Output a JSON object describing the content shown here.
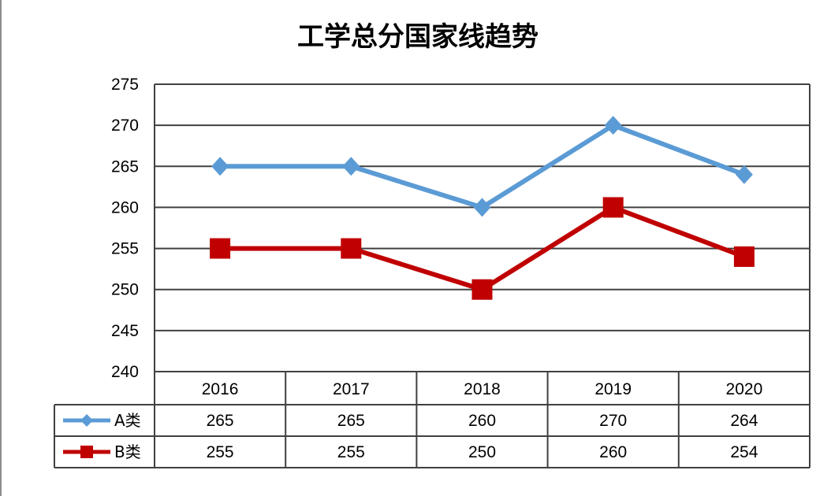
{
  "chart_data": {
    "type": "line",
    "title": "工学总分国家线趋势",
    "categories": [
      "2016",
      "2017",
      "2018",
      "2019",
      "2020"
    ],
    "series": [
      {
        "name": "A类",
        "values": [
          265,
          265,
          260,
          270,
          264
        ],
        "color": "#5b9bd5",
        "marker": "diamond"
      },
      {
        "name": "B类",
        "values": [
          255,
          255,
          250,
          260,
          254
        ],
        "color": "#c00000",
        "marker": "square"
      }
    ],
    "ylim": [
      240,
      275
    ],
    "y_ticks": [
      "240",
      "245",
      "250",
      "255",
      "260",
      "265",
      "270",
      "275"
    ],
    "grid": true,
    "legend": "data-table",
    "xlabel": "",
    "ylabel": ""
  }
}
